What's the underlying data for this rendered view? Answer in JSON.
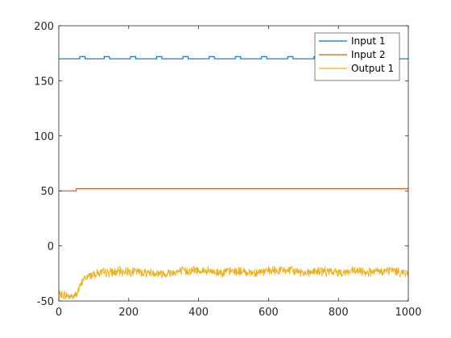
{
  "chart_data": {
    "type": "line",
    "title": "",
    "xlabel": "",
    "ylabel": "",
    "xlim": [
      0,
      1000
    ],
    "ylim": [
      -50,
      200
    ],
    "x_ticks": [
      0,
      200,
      400,
      600,
      800,
      1000
    ],
    "y_ticks": [
      -50,
      0,
      50,
      100,
      150,
      200
    ],
    "x_tick_labels": [
      "0",
      "200",
      "400",
      "600",
      "800",
      "1000"
    ],
    "y_tick_labels": [
      "-50",
      "0",
      "50",
      "100",
      "150",
      "200"
    ],
    "grid": false,
    "legend": {
      "position": "top-right",
      "entries": [
        "Input 1",
        "Input 2",
        "Output 1"
      ]
    },
    "series": [
      {
        "name": "Input 1",
        "color": "#0072BD",
        "description": "square wave between 170 and 172",
        "x": [
          0,
          60,
          60,
          75,
          75,
          130,
          130,
          145,
          145,
          205,
          205,
          220,
          220,
          280,
          280,
          295,
          295,
          355,
          355,
          370,
          370,
          430,
          430,
          445,
          445,
          505,
          505,
          520,
          520,
          580,
          580,
          595,
          595,
          655,
          655,
          670,
          670,
          730,
          730,
          745,
          745,
          805,
          805,
          820,
          820,
          880,
          880,
          895,
          895,
          955,
          955,
          970,
          970,
          1000
        ],
        "y": [
          170,
          170,
          172,
          172,
          170,
          170,
          172,
          172,
          170,
          170,
          172,
          172,
          170,
          170,
          172,
          172,
          170,
          170,
          172,
          172,
          170,
          170,
          172,
          172,
          170,
          170,
          172,
          172,
          170,
          170,
          172,
          172,
          170,
          170,
          172,
          172,
          170,
          170,
          172,
          172,
          170,
          170,
          172,
          172,
          170,
          170,
          172,
          172,
          170,
          170,
          172,
          172,
          170,
          170
        ]
      },
      {
        "name": "Input 2",
        "color": "#D95319",
        "x": [
          0,
          50,
          50,
          1000
        ],
        "y": [
          50,
          50,
          52,
          52
        ]
      },
      {
        "name": "Output 1",
        "color": "#EDB120",
        "noisy": true,
        "x": [
          0,
          20,
          40,
          50,
          60,
          70,
          100,
          150,
          200,
          250,
          300,
          350,
          400,
          450,
          500,
          550,
          600,
          650,
          700,
          750,
          800,
          850,
          900,
          950,
          1000
        ],
        "y": [
          -44,
          -45,
          -46,
          -44,
          -38,
          -30,
          -25,
          -24,
          -23,
          -24,
          -25,
          -23,
          -22,
          -24,
          -23,
          -24,
          -23,
          -22,
          -24,
          -23,
          -24,
          -23,
          -24,
          -22,
          -25
        ]
      }
    ]
  }
}
